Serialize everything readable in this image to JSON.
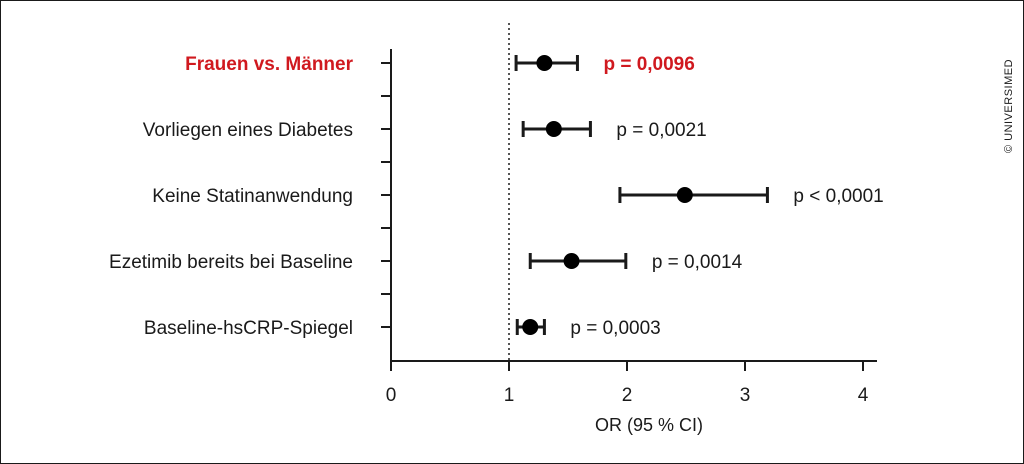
{
  "credit": "© UNIVERSIMED",
  "chart_data": {
    "type": "forest",
    "xlabel": "OR (95 % CI)",
    "xlim": [
      0,
      4
    ],
    "x_ticks": [
      "0",
      "1",
      "2",
      "3",
      "4"
    ],
    "reference_line": 1,
    "highlight_color": "#d0191f",
    "rows": [
      {
        "label": "Frauen vs. Männer",
        "or": 1.3,
        "ci_low": 1.06,
        "ci_high": 1.58,
        "p": "p = 0,0096",
        "highlight": true
      },
      {
        "label": "Vorliegen eines Diabetes",
        "or": 1.38,
        "ci_low": 1.12,
        "ci_high": 1.69,
        "p": "p = 0,0021",
        "highlight": false
      },
      {
        "label": "Keine Statinanwendung",
        "or": 2.49,
        "ci_low": 1.94,
        "ci_high": 3.19,
        "p": "p < 0,0001",
        "highlight": false
      },
      {
        "label": "Ezetimib bereits bei Baseline",
        "or": 1.53,
        "ci_low": 1.18,
        "ci_high": 1.99,
        "p": "p = 0,0014",
        "highlight": false
      },
      {
        "label": "Baseline-hsCRP-Spiegel",
        "or": 1.18,
        "ci_low": 1.07,
        "ci_high": 1.3,
        "p": "p = 0,0003",
        "highlight": false
      }
    ]
  }
}
